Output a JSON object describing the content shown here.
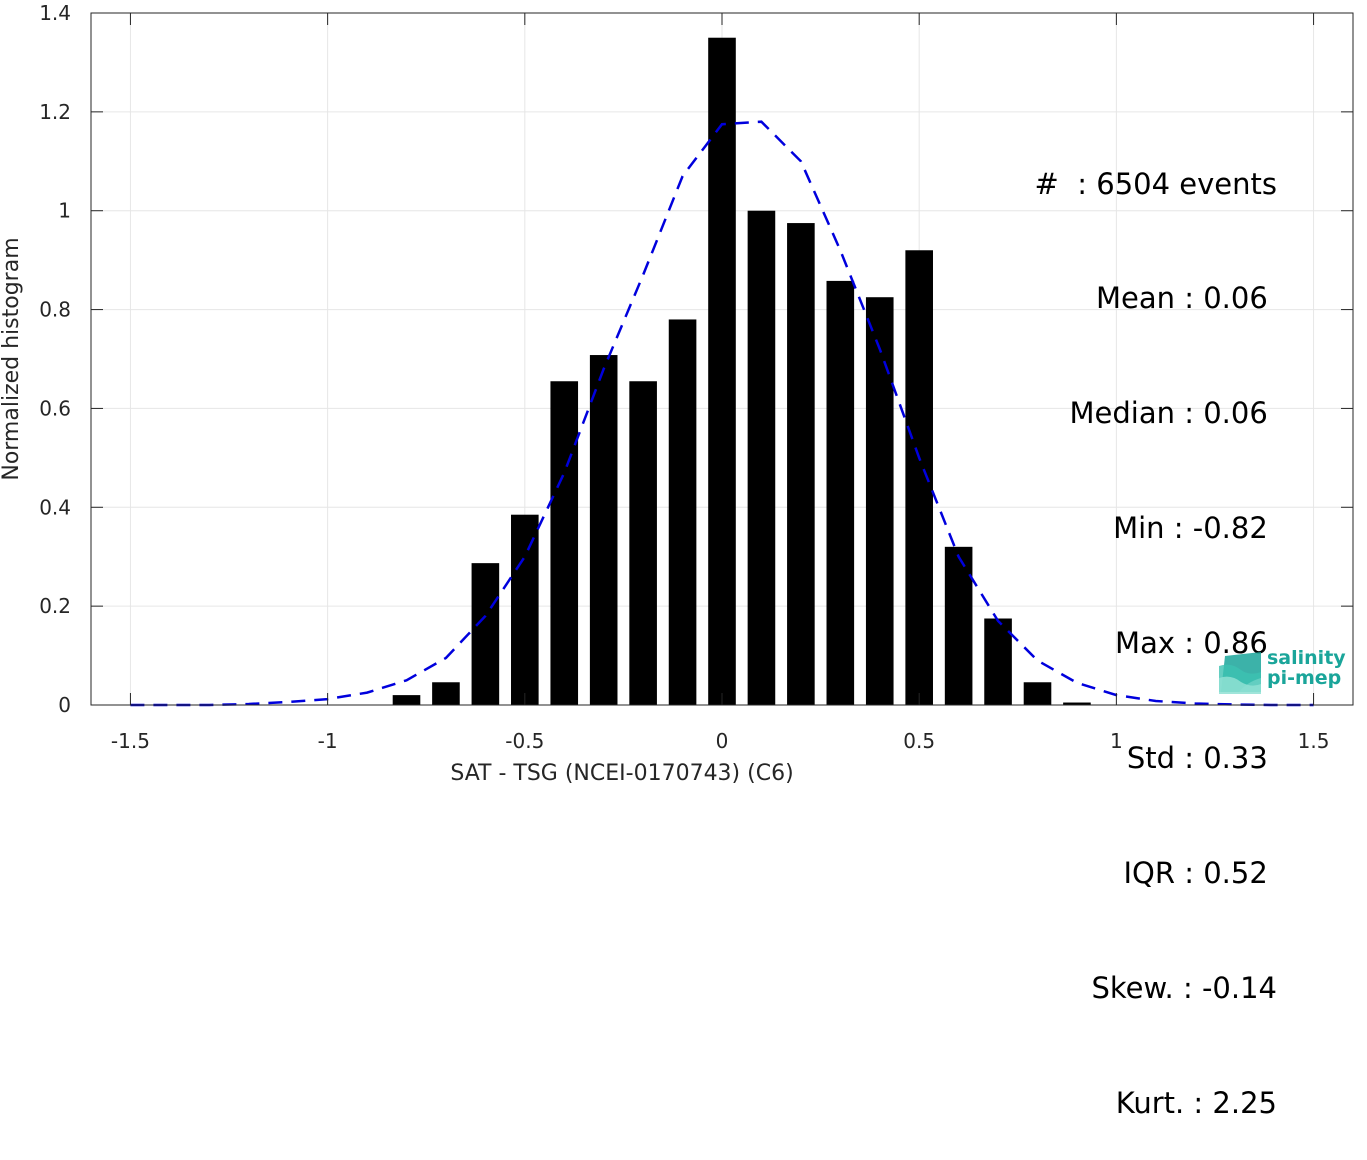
{
  "chart_data": {
    "type": "bar",
    "xlabel": "SAT - TSG (NCEI-0170743) (C6)",
    "ylabel": "Normalized histogram",
    "xlim": [
      -1.6,
      1.6
    ],
    "ylim": [
      0,
      1.4
    ],
    "xticks": [
      -1.5,
      -1,
      -0.5,
      0,
      0.5,
      1,
      1.5
    ],
    "xtick_labels": [
      "-1.5",
      "-1",
      "-0.5",
      "0",
      "0.5",
      "1",
      "1.5"
    ],
    "yticks": [
      0,
      0.2,
      0.4,
      0.6,
      0.8,
      1,
      1.2,
      1.4
    ],
    "ytick_labels": [
      "0",
      "0.2",
      "0.4",
      "0.6",
      "0.8",
      "1",
      "1.2",
      "1.4"
    ],
    "grid": true,
    "bar_width": 0.07,
    "bars": {
      "x": [
        -0.8,
        -0.7,
        -0.6,
        -0.5,
        -0.4,
        -0.3,
        -0.2,
        -0.1,
        0.0,
        0.1,
        0.2,
        0.3,
        0.4,
        0.5,
        0.6,
        0.7,
        0.8,
        0.9
      ],
      "values": [
        0.02,
        0.046,
        0.287,
        0.385,
        0.655,
        0.708,
        0.655,
        0.78,
        1.35,
        1.0,
        0.975,
        0.858,
        0.825,
        0.92,
        0.32,
        0.175,
        0.046,
        0.005
      ],
      "color": "#000000"
    },
    "fit": {
      "style": "dashed",
      "color": "#0000dd",
      "x": [
        -1.5,
        -1.4,
        -1.3,
        -1.2,
        -1.1,
        -1.0,
        -0.9,
        -0.8,
        -0.7,
        -0.6,
        -0.5,
        -0.4,
        -0.3,
        -0.2,
        -0.1,
        0.0,
        0.1,
        0.2,
        0.3,
        0.4,
        0.5,
        0.6,
        0.7,
        0.8,
        0.9,
        1.0,
        1.1,
        1.2,
        1.3,
        1.4,
        1.5
      ],
      "y": [
        0.0,
        0.0,
        0.0,
        0.002,
        0.006,
        0.012,
        0.025,
        0.05,
        0.095,
        0.18,
        0.3,
        0.47,
        0.68,
        0.87,
        1.07,
        1.175,
        1.18,
        1.1,
        0.92,
        0.72,
        0.5,
        0.3,
        0.17,
        0.09,
        0.045,
        0.02,
        0.008,
        0.003,
        0.001,
        0.0,
        0.0
      ]
    }
  },
  "stats": [
    "#  : 6504 events",
    "Mean : 0.06 ",
    "Median : 0.06 ",
    "Min : -0.82 ",
    "Max : 0.86 ",
    "Std : 0.33 ",
    "IQR : 0.52 ",
    "Skew. : -0.14",
    "Kurt. : 2.25"
  ],
  "logo": {
    "line1": "salinity",
    "line2": "pi-mep",
    "color": "#1aa59a"
  }
}
